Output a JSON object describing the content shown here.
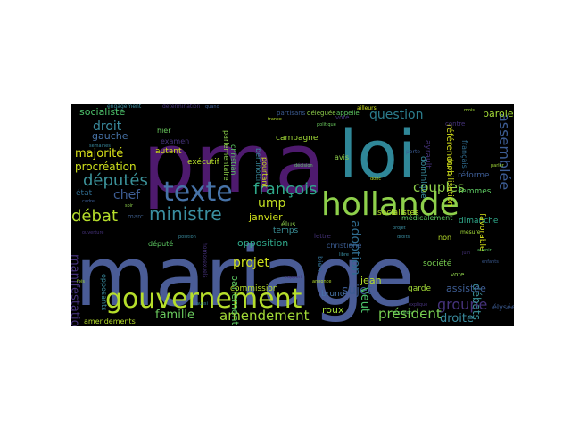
{
  "colors": {
    "background": "#000000",
    "page": "#ffffff"
  },
  "words": [
    {
      "text": "mariage",
      "color": "#4a5c96"
    },
    {
      "text": "pma",
      "color": "#4e1a6e"
    },
    {
      "text": "loi",
      "color": "#2f8798"
    },
    {
      "text": "gouvernement",
      "color": "#b6de2b"
    },
    {
      "text": "hollande",
      "color": "#8ed04b"
    },
    {
      "text": "texte",
      "color": "#4773a8"
    },
    {
      "text": "ministre",
      "color": "#3a8ea0"
    },
    {
      "text": "débat",
      "color": "#b6de2b"
    },
    {
      "text": "députés",
      "color": "#3b9199"
    },
    {
      "text": "majorité",
      "color": "#d8e219"
    },
    {
      "text": "françois",
      "color": "#2fa88a"
    },
    {
      "text": "question",
      "color": "#2c7e8e"
    },
    {
      "text": "couples",
      "color": "#8ed04b"
    },
    {
      "text": "groupe",
      "color": "#45327a"
    },
    {
      "text": "assemblée",
      "color": "#3c5c93"
    },
    {
      "text": "président",
      "color": "#79d151"
    },
    {
      "text": "amendement",
      "color": "#a2da37"
    },
    {
      "text": "famille",
      "color": "#6bcb5e"
    },
    {
      "text": "projet",
      "color": "#cfe11c"
    },
    {
      "text": "droit",
      "color": "#3a8c9f"
    },
    {
      "text": "chef",
      "color": "#3e5e95"
    },
    {
      "text": "ump",
      "color": "#c3df22"
    },
    {
      "text": "procréation",
      "color": "#cfe11c"
    },
    {
      "text": "socialiste",
      "color": "#4dc36b"
    },
    {
      "text": "gauche",
      "color": "#4773a8"
    },
    {
      "text": "droite",
      "color": "#3a8c9f"
    },
    {
      "text": "sujet",
      "color": "#3c5c93"
    },
    {
      "text": "adoption",
      "color": "#2f6b8e"
    },
    {
      "text": "opposition",
      "color": "#2fa88a"
    },
    {
      "text": "parlement",
      "color": "#5dc962"
    },
    {
      "text": "manifestation",
      "color": "#45327a"
    },
    {
      "text": "janvier",
      "color": "#cfe11c"
    },
    {
      "text": "jean",
      "color": "#b6de2b"
    },
    {
      "text": "débats",
      "color": "#3b9199"
    },
    {
      "text": "assistée",
      "color": "#3e5e95"
    },
    {
      "text": "référendum",
      "color": "#d8e219"
    },
    {
      "text": "campagne",
      "color": "#a2da37"
    },
    {
      "text": "parole",
      "color": "#a2da37"
    },
    {
      "text": "dominique",
      "color": "#3a8ea0"
    },
    {
      "text": "médicalement",
      "color": "#5dc962"
    },
    {
      "text": "socialistes",
      "color": "#b6de2b"
    },
    {
      "text": "veut",
      "color": "#4dc36b"
    },
    {
      "text": "état",
      "color": "#2f6b8e"
    },
    {
      "text": "marc",
      "color": "#39567f"
    },
    {
      "text": "roux",
      "color": "#a2da37"
    },
    {
      "text": "bruno",
      "color": "#4773a8"
    },
    {
      "text": "garde",
      "color": "#a2da37"
    },
    {
      "text": "temps",
      "color": "#3b9199"
    },
    {
      "text": "commission",
      "color": "#b6de2b"
    },
    {
      "text": "exécutif",
      "color": "#b6de2b"
    },
    {
      "text": "hier",
      "color": "#6bcb5e"
    },
    {
      "text": "autant",
      "color": "#cfe11c"
    },
    {
      "text": "christian",
      "color": "#5dc962"
    },
    {
      "text": "parlementaire",
      "color": "#8ed04b"
    },
    {
      "text": "dimanche",
      "color": "#2fa88a"
    },
    {
      "text": "favorable",
      "color": "#d8e219"
    },
    {
      "text": "femmes",
      "color": "#5dc962"
    },
    {
      "text": "réforme",
      "color": "#3c5c93"
    },
    {
      "text": "non",
      "color": "#b6de2b"
    },
    {
      "text": "société",
      "color": "#79d151"
    },
    {
      "text": "opposants",
      "color": "#3a8c9f"
    },
    {
      "text": "élus",
      "color": "#8ed04b"
    },
    {
      "text": "député",
      "color": "#5dc962"
    },
    {
      "text": "amendements",
      "color": "#b6de2b"
    },
    {
      "text": "mobilisation",
      "color": "#cfe11c"
    },
    {
      "text": "christiane",
      "color": "#3b5c92"
    },
    {
      "text": "français",
      "color": "#2f6b8e"
    },
    {
      "text": "élysée",
      "color": "#3c5c93"
    },
    {
      "text": "contre",
      "color": "#45327a"
    },
    {
      "text": "avis",
      "color": "#8ed04b"
    },
    {
      "text": "bien",
      "color": "#2f6b8e"
    },
    {
      "text": "ayrault",
      "color": "#45327a"
    },
    {
      "text": "voté",
      "color": "#45327a"
    },
    {
      "text": "lettre",
      "color": "#45327a"
    },
    {
      "text": "vote",
      "color": "#8ed04b"
    },
    {
      "text": "bertinotti",
      "color": "#3a8c9f"
    },
    {
      "text": "pourtant",
      "color": "#cfe11c"
    },
    {
      "text": "examen",
      "color": "#45327a"
    },
    {
      "text": "partisans",
      "color": "#3c5c93"
    },
    {
      "text": "déléguée",
      "color": "#8ed04b"
    },
    {
      "text": "appelle",
      "color": "#5dc962"
    },
    {
      "text": "ailleurs",
      "color": "#cfe11c"
    },
    {
      "text": "engagement",
      "color": "#3a8c9f"
    },
    {
      "text": "détermination",
      "color": "#45327a"
    },
    {
      "text": "quand",
      "color": "#3c5c93"
    },
    {
      "text": "france",
      "color": "#b6de2b"
    },
    {
      "text": "politique",
      "color": "#6bcb5e"
    },
    {
      "text": "semaines",
      "color": "#3a8c9f"
    },
    {
      "text": "soir",
      "color": "#8ed04b"
    },
    {
      "text": "mesure",
      "color": "#a2da37"
    },
    {
      "text": "porte",
      "color": "#3c5c93"
    },
    {
      "text": "juin",
      "color": "#45327a"
    },
    {
      "text": "projet",
      "color": "#3a8c9f"
    },
    {
      "text": "avenir",
      "color": "#5dc962"
    },
    {
      "text": "donc",
      "color": "#b6de2b"
    },
    {
      "text": "ouverture",
      "color": "#45327a"
    },
    {
      "text": "position",
      "color": "#3a8c9f"
    },
    {
      "text": "parler",
      "color": "#a2da37"
    },
    {
      "text": "aussi",
      "color": "#3a8c9f"
    },
    {
      "text": "décision",
      "color": "#5dc962"
    },
    {
      "text": "rapport",
      "color": "#45327a"
    },
    {
      "text": "enfants",
      "color": "#3c5c93"
    },
    {
      "text": "fois",
      "color": "#a2da37"
    },
    {
      "text": "droits",
      "color": "#3a8c9f"
    },
    {
      "text": "homosexuels",
      "color": "#45327a"
    },
    {
      "text": "annonce",
      "color": "#b6de2b"
    },
    {
      "text": "explique",
      "color": "#45327a"
    },
    {
      "text": "occasion",
      "color": "#5dc962"
    },
    {
      "text": "libre",
      "color": "#3a8c9f"
    },
    {
      "text": "mois",
      "color": "#a2da37"
    },
    {
      "text": "cadre",
      "color": "#3c5c93"
    }
  ]
}
